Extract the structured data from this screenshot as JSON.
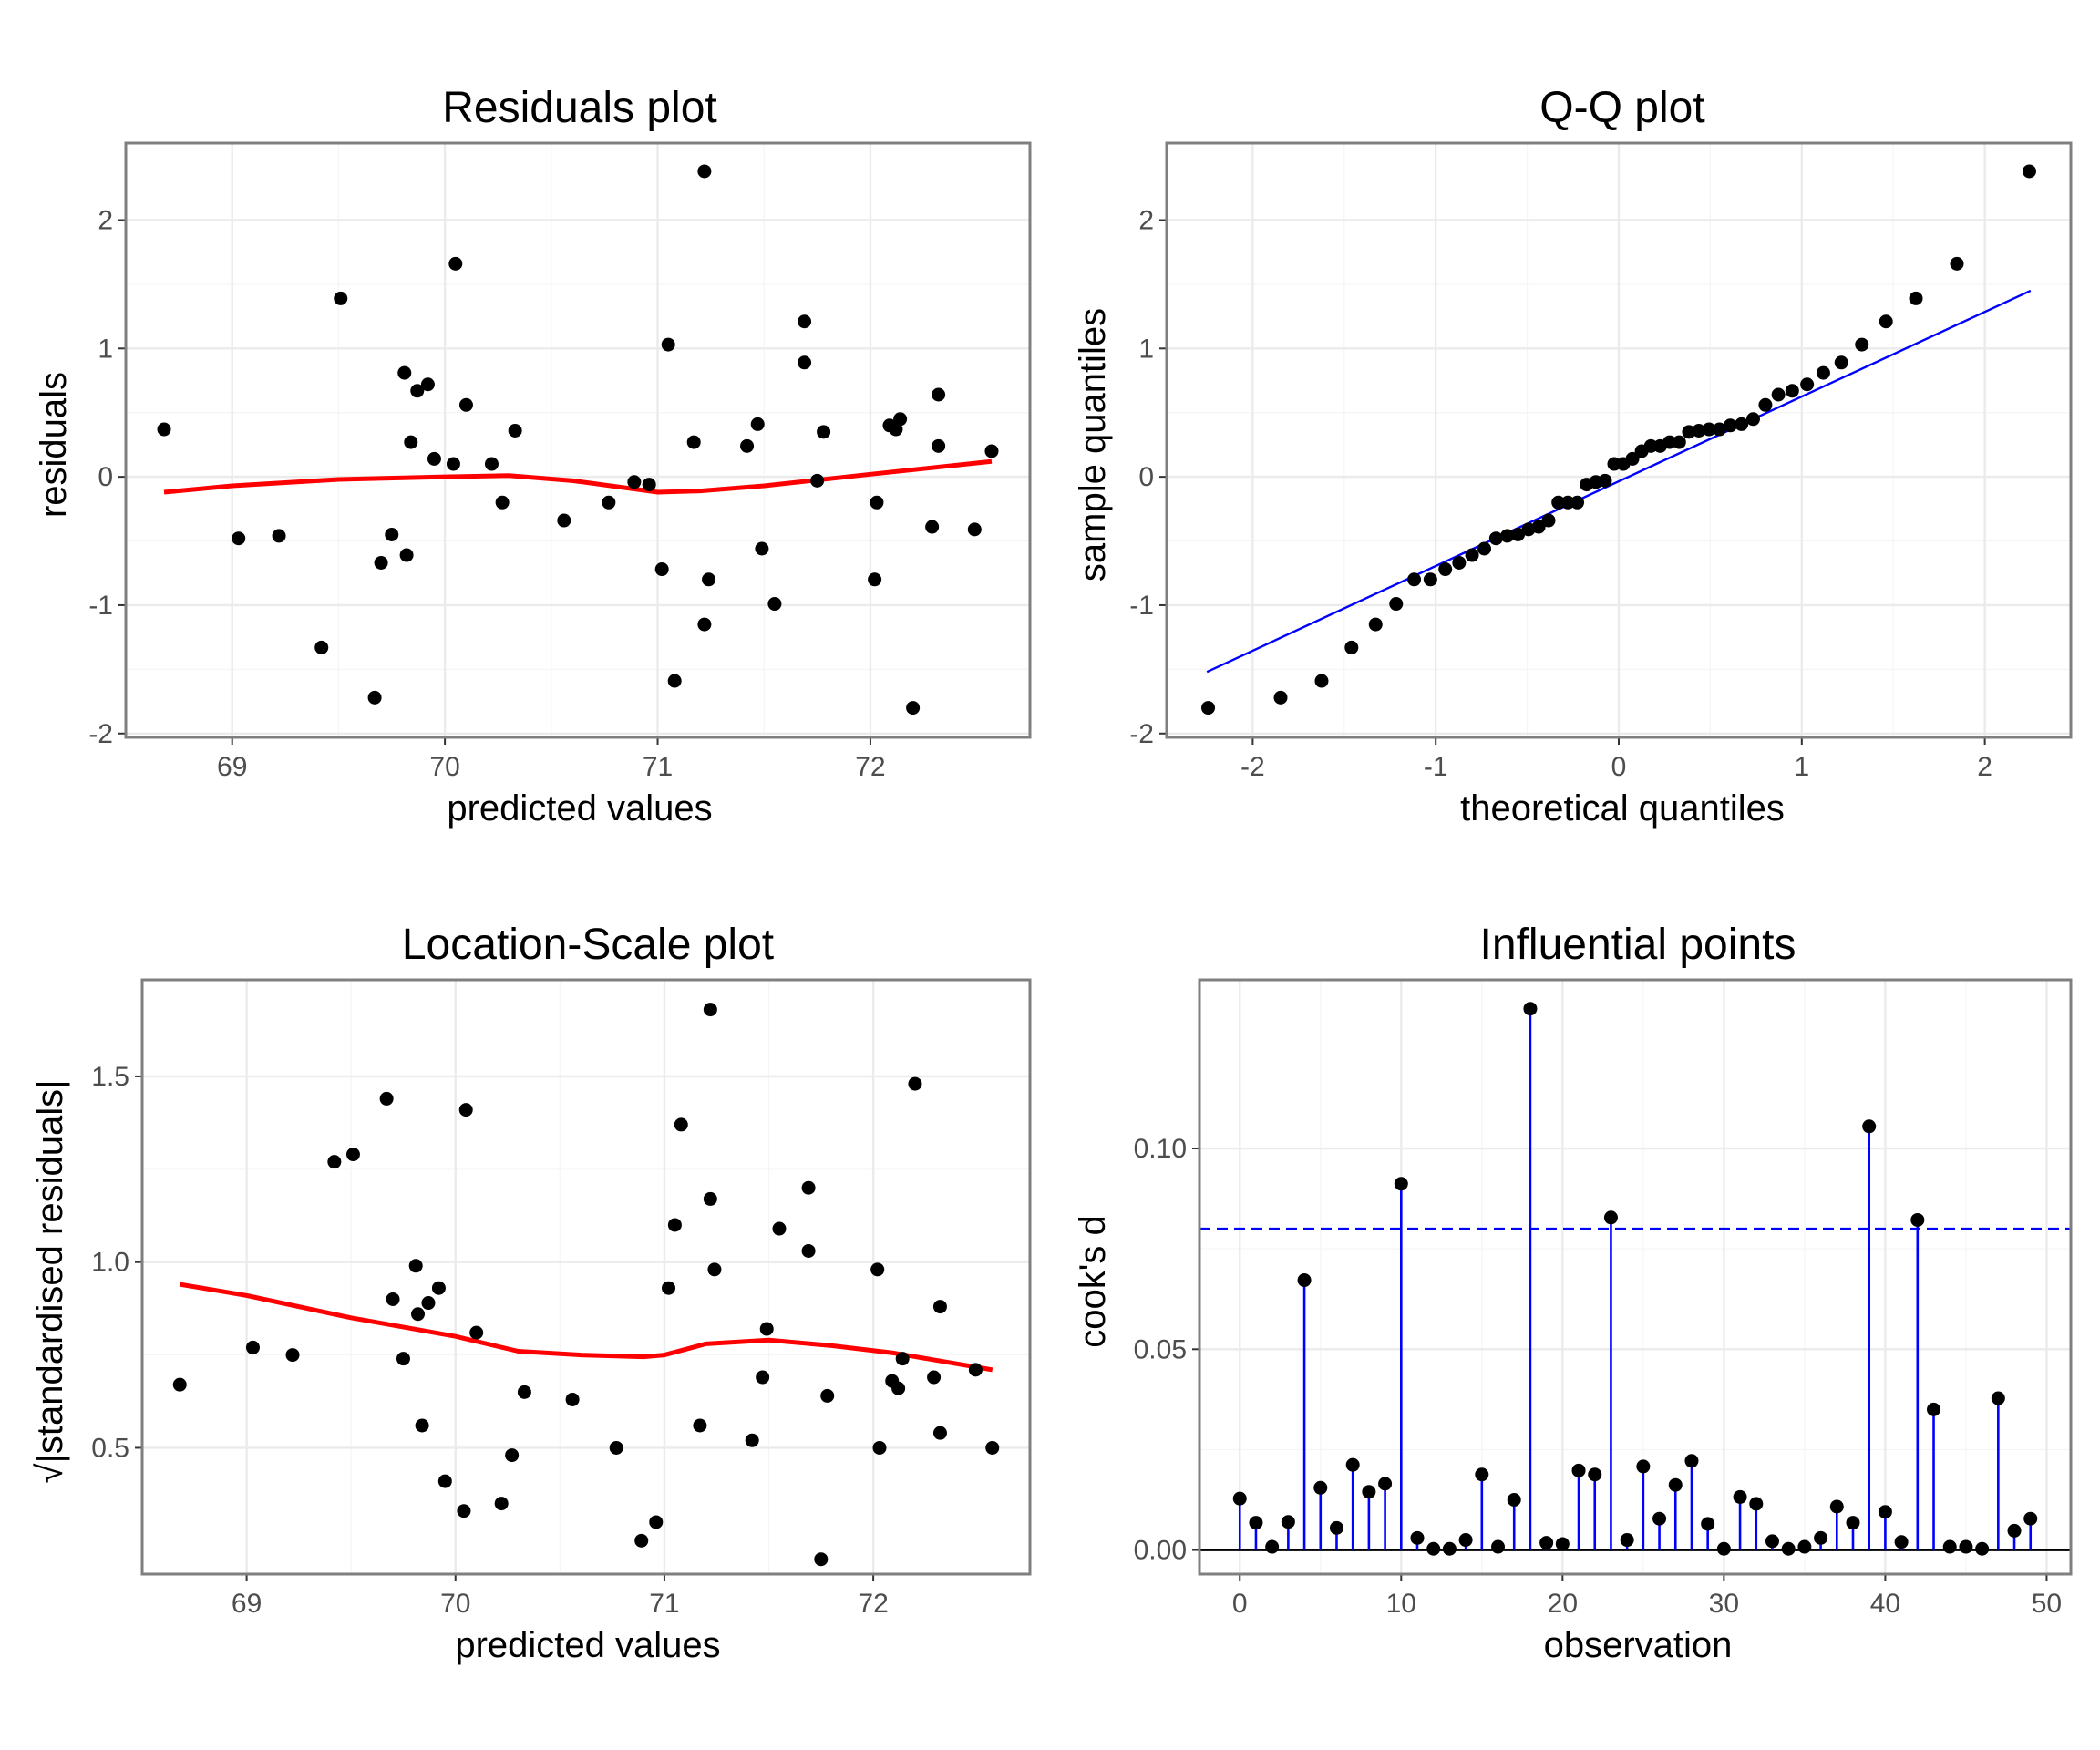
{
  "chart_data": [
    {
      "id": "residuals",
      "type": "scatter",
      "title": "Residuals plot",
      "xlabel": "predicted values",
      "ylabel": "residuals",
      "xlim": [
        68.5,
        72.75
      ],
      "ylim": [
        -2.03,
        2.6
      ],
      "xticks": [
        69,
        70,
        71,
        72
      ],
      "yticks": [
        -2,
        -1,
        0,
        1,
        2
      ],
      "grid": true,
      "points": [
        [
          68.68,
          0.37
        ],
        [
          69.03,
          -0.48
        ],
        [
          69.22,
          -0.46
        ],
        [
          69.42,
          -1.33
        ],
        [
          69.51,
          1.39
        ],
        [
          69.67,
          -1.72
        ],
        [
          69.7,
          -0.67
        ],
        [
          69.75,
          -0.45
        ],
        [
          69.81,
          0.81
        ],
        [
          69.82,
          -0.61
        ],
        [
          69.84,
          0.27
        ],
        [
          69.87,
          0.67
        ],
        [
          69.92,
          0.72
        ],
        [
          69.95,
          0.14
        ],
        [
          70.04,
          0.1
        ],
        [
          70.05,
          1.66
        ],
        [
          70.1,
          0.56
        ],
        [
          70.22,
          0.1
        ],
        [
          70.27,
          -0.2
        ],
        [
          70.33,
          0.36
        ],
        [
          70.56,
          -0.34
        ],
        [
          70.77,
          -0.2
        ],
        [
          70.89,
          -0.04
        ],
        [
          70.96,
          -0.06
        ],
        [
          71.02,
          -0.72
        ],
        [
          71.05,
          1.03
        ],
        [
          71.08,
          -1.59
        ],
        [
          71.17,
          0.27
        ],
        [
          71.22,
          2.38
        ],
        [
          71.22,
          -1.15
        ],
        [
          71.24,
          -0.8
        ],
        [
          71.42,
          0.24
        ],
        [
          71.47,
          0.41
        ],
        [
          71.49,
          -0.56
        ],
        [
          71.55,
          -0.99
        ],
        [
          71.69,
          1.21
        ],
        [
          71.69,
          0.89
        ],
        [
          71.75,
          -0.03
        ],
        [
          71.78,
          0.35
        ],
        [
          72.02,
          -0.8
        ],
        [
          72.03,
          -0.2
        ],
        [
          72.09,
          0.4
        ],
        [
          72.12,
          0.37
        ],
        [
          72.14,
          0.45
        ],
        [
          72.2,
          -1.8
        ],
        [
          72.29,
          -0.39
        ],
        [
          72.32,
          0.64
        ],
        [
          72.32,
          0.24
        ],
        [
          72.49,
          -0.41
        ],
        [
          72.57,
          0.2
        ]
      ],
      "smooth": [
        [
          68.68,
          -0.12
        ],
        [
          69.0,
          -0.07
        ],
        [
          69.5,
          -0.02
        ],
        [
          70.0,
          0.0
        ],
        [
          70.3,
          0.01
        ],
        [
          70.6,
          -0.03
        ],
        [
          71.0,
          -0.12
        ],
        [
          71.2,
          -0.11
        ],
        [
          71.5,
          -0.07
        ],
        [
          72.0,
          0.02
        ],
        [
          72.57,
          0.12
        ]
      ]
    },
    {
      "id": "qq",
      "type": "scatter",
      "title": "Q-Q plot",
      "xlabel": "theoretical quantiles",
      "ylabel": "sample quantiles",
      "xlim": [
        -2.47,
        2.47
      ],
      "ylim": [
        -2.03,
        2.6
      ],
      "xticks": [
        -2,
        -1,
        0,
        1,
        2
      ],
      "yticks": [
        -2,
        -1,
        0,
        1,
        2
      ],
      "grid": true,
      "sample": [
        2.38,
        1.66,
        1.39,
        1.21,
        1.03,
        0.89,
        0.81,
        0.72,
        0.67,
        0.64,
        0.56,
        0.45,
        0.41,
        0.4,
        0.37,
        0.37,
        0.36,
        0.35,
        0.27,
        0.27,
        0.24,
        0.24,
        0.2,
        0.14,
        0.1,
        0.1,
        -0.03,
        -0.04,
        -0.06,
        -0.2,
        -0.2,
        -0.2,
        -0.34,
        -0.39,
        -0.41,
        -0.45,
        -0.46,
        -0.48,
        -0.56,
        -0.61,
        -0.67,
        -0.72,
        -0.8,
        -0.8,
        -0.99,
        -1.15,
        -1.33,
        -1.59,
        -1.72,
        -1.8
      ],
      "line": {
        "x": [
          -2.25,
          2.25
        ],
        "y": [
          -1.52,
          1.45
        ]
      }
    },
    {
      "id": "location-scale",
      "type": "scatter",
      "title": "Location-Scale plot",
      "xlabel": "predicted values",
      "ylabel": "√|standardised residuals|",
      "xlim": [
        68.5,
        72.75
      ],
      "ylim": [
        0.16,
        1.76
      ],
      "xticks": [
        69,
        70,
        71,
        72
      ],
      "yticks": [
        0.5,
        1.0,
        1.5
      ],
      "grid": true,
      "points": [
        [
          68.68,
          0.67
        ],
        [
          69.03,
          0.77
        ],
        [
          69.22,
          0.75
        ],
        [
          69.42,
          1.27
        ],
        [
          69.51,
          1.29
        ],
        [
          69.67,
          1.44
        ],
        [
          69.7,
          0.9
        ],
        [
          69.75,
          0.74
        ],
        [
          69.81,
          0.99
        ],
        [
          69.82,
          0.86
        ],
        [
          69.84,
          0.56
        ],
        [
          69.87,
          0.89
        ],
        [
          69.92,
          0.93
        ],
        [
          69.95,
          0.41
        ],
        [
          70.04,
          0.33
        ],
        [
          70.05,
          1.41
        ],
        [
          70.1,
          0.81
        ],
        [
          70.22,
          0.35
        ],
        [
          70.27,
          0.48
        ],
        [
          70.33,
          0.65
        ],
        [
          70.56,
          0.63
        ],
        [
          70.77,
          0.5
        ],
        [
          70.89,
          0.25
        ],
        [
          70.96,
          0.3
        ],
        [
          71.02,
          0.93
        ],
        [
          71.05,
          1.1
        ],
        [
          71.08,
          1.37
        ],
        [
          71.17,
          0.56
        ],
        [
          71.22,
          1.68
        ],
        [
          71.22,
          1.17
        ],
        [
          71.24,
          0.98
        ],
        [
          71.42,
          0.52
        ],
        [
          71.47,
          0.69
        ],
        [
          71.49,
          0.82
        ],
        [
          71.55,
          1.09
        ],
        [
          71.69,
          1.2
        ],
        [
          71.69,
          1.03
        ],
        [
          71.75,
          0.2
        ],
        [
          71.78,
          0.64
        ],
        [
          72.02,
          0.98
        ],
        [
          72.03,
          0.5
        ],
        [
          72.09,
          0.68
        ],
        [
          72.12,
          0.66
        ],
        [
          72.14,
          0.74
        ],
        [
          72.2,
          1.48
        ],
        [
          72.29,
          0.69
        ],
        [
          72.32,
          0.88
        ],
        [
          72.32,
          0.54
        ],
        [
          72.49,
          0.71
        ],
        [
          72.57,
          0.5
        ]
      ],
      "smooth": [
        [
          68.68,
          0.94
        ],
        [
          69.0,
          0.91
        ],
        [
          69.5,
          0.85
        ],
        [
          70.0,
          0.8
        ],
        [
          70.3,
          0.76
        ],
        [
          70.6,
          0.75
        ],
        [
          70.9,
          0.745
        ],
        [
          71.0,
          0.75
        ],
        [
          71.2,
          0.78
        ],
        [
          71.5,
          0.79
        ],
        [
          71.8,
          0.775
        ],
        [
          72.1,
          0.755
        ],
        [
          72.57,
          0.71
        ]
      ]
    },
    {
      "id": "influence",
      "type": "stem",
      "title": "Influential points",
      "xlabel": "observation",
      "ylabel": "cook's d",
      "xlim": [
        -2.5,
        51.5
      ],
      "ylim": [
        -0.006,
        0.142
      ],
      "xticks": [
        0,
        10,
        20,
        30,
        40,
        50
      ],
      "yticks": [
        0.0,
        0.05,
        0.1
      ],
      "grid": true,
      "threshold": 0.08,
      "x": [
        0,
        1,
        2,
        3,
        4,
        5,
        6,
        7,
        8,
        9,
        10,
        11,
        12,
        13,
        14,
        15,
        16,
        17,
        18,
        19,
        20,
        21,
        22,
        23,
        24,
        25,
        26,
        27,
        28,
        29,
        30,
        31,
        32,
        33,
        34,
        35,
        36,
        37,
        38,
        39,
        40,
        41,
        42,
        43,
        44,
        45,
        46,
        47,
        48,
        49
      ],
      "values": [
        0.0128,
        0.0068,
        0.0008,
        0.007,
        0.0672,
        0.0155,
        0.0055,
        0.0212,
        0.0145,
        0.0165,
        0.0912,
        0.003,
        0.0003,
        0.0003,
        0.0025,
        0.0188,
        0.0008,
        0.0125,
        0.1348,
        0.0018,
        0.0015,
        0.0198,
        0.0188,
        0.0828,
        0.0025,
        0.0208,
        0.0078,
        0.0162,
        0.0222,
        0.0065,
        0.0003,
        0.0132,
        0.0115,
        0.0022,
        0.0003,
        0.0008,
        0.003,
        0.0108,
        0.0068,
        0.1055,
        0.0095,
        0.002,
        0.0822,
        0.035,
        0.0008,
        0.0008,
        0.0003,
        0.0378,
        0.0048,
        0.0078
      ]
    }
  ]
}
